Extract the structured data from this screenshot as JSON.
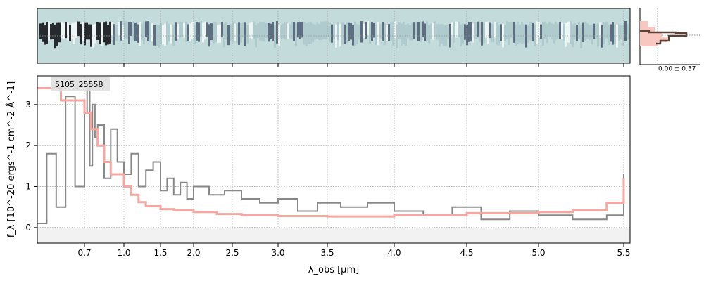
{
  "chart_data": {
    "type": "line",
    "object_label": "5105_25558",
    "xlabel": "λ_obs [μm]",
    "ylabel": "f_λ [10^-20 ergs^-1 cm^-2 Å^-1]",
    "x_scale": "nonlinear",
    "xlim": [
      0.6,
      5.52
    ],
    "ylim": [
      -0.38,
      3.7
    ],
    "x_ticks": [
      0.7,
      1.0,
      1.5,
      2.0,
      2.5,
      3.0,
      3.5,
      4.0,
      4.5,
      5.0,
      5.5
    ],
    "x_tick_labels": [
      "0.7",
      "1.0",
      "1.5",
      "2.0",
      "2.5",
      "3.0",
      "3.5",
      "4.0",
      "4.5",
      "5.0",
      "5.5"
    ],
    "y_ticks": [
      0,
      1,
      2,
      3
    ],
    "y_tick_labels": [
      "0",
      "1",
      "2",
      "3"
    ],
    "grid": true,
    "colors": {
      "spectrum": "#888888",
      "model": "#f7a7a0",
      "model_overlap": "#c47f7c",
      "panel_bg": "#c4dbdb",
      "hist_fill": "#f7c7c0",
      "hist_line": "#5a4238"
    },
    "series": [
      {
        "key": "spectrum",
        "x": [
          0.6,
          0.62,
          0.64,
          0.66,
          0.68,
          0.7,
          0.72,
          0.74,
          0.76,
          0.78,
          0.8,
          0.85,
          0.9,
          0.95,
          1.0,
          1.1,
          1.2,
          1.3,
          1.4,
          1.5,
          1.6,
          1.7,
          1.8,
          1.9,
          2.0,
          2.2,
          2.4,
          2.6,
          2.8,
          3.0,
          3.2,
          3.4,
          3.6,
          3.8,
          4.0,
          4.2,
          4.4,
          4.6,
          4.8,
          5.0,
          5.2,
          5.4,
          5.5
        ],
        "y": [
          0.1,
          1.8,
          0.5,
          3.2,
          1.0,
          2.8,
          3.5,
          1.5,
          3.0,
          2.2,
          2.5,
          1.2,
          2.4,
          1.6,
          1.3,
          1.8,
          1.0,
          1.4,
          1.6,
          0.9,
          1.2,
          0.8,
          1.1,
          0.7,
          1.0,
          0.8,
          0.9,
          0.7,
          0.6,
          0.7,
          0.4,
          0.6,
          0.5,
          0.6,
          0.4,
          0.3,
          0.5,
          0.2,
          0.4,
          0.3,
          0.2,
          0.3,
          1.3
        ]
      },
      {
        "key": "model",
        "x": [
          0.6,
          0.65,
          0.7,
          0.75,
          0.8,
          0.85,
          0.9,
          1.0,
          1.1,
          1.2,
          1.3,
          1.5,
          1.7,
          2.0,
          2.3,
          2.6,
          3.0,
          3.5,
          4.0,
          4.5,
          5.0,
          5.2,
          5.4,
          5.5
        ],
        "y": [
          3.4,
          3.1,
          2.8,
          2.4,
          2.0,
          1.6,
          1.3,
          1.0,
          0.8,
          0.62,
          0.52,
          0.45,
          0.42,
          0.38,
          0.33,
          0.3,
          0.28,
          0.27,
          0.3,
          0.35,
          0.38,
          0.42,
          0.6,
          1.2
        ]
      }
    ],
    "inset": {
      "label": "0.00 ± 0.37"
    }
  }
}
